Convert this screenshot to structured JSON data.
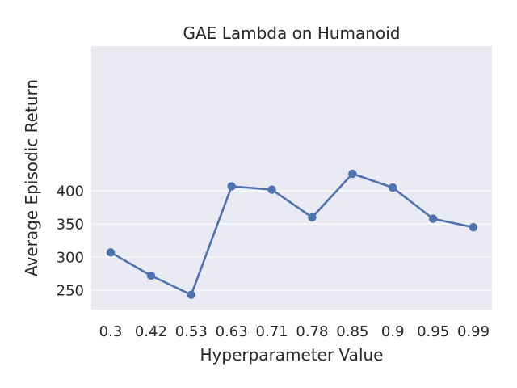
{
  "chart_data": {
    "type": "line",
    "title": "GAE Lambda on Humanoid",
    "xlabel": "Hyperparameter Value",
    "ylabel": "Average Episodic Return",
    "categories": [
      "0.3",
      "0.42",
      "0.53",
      "0.63",
      "0.71",
      "0.78",
      "0.85",
      "0.9",
      "0.95",
      "0.99"
    ],
    "series": [
      {
        "values": [
          307,
          272,
          243,
          407,
          402,
          360,
          426,
          405,
          358,
          345
        ]
      }
    ],
    "yticks": [
      250,
      300,
      350,
      400
    ],
    "ylim": [
      234,
      435
    ],
    "grid": true,
    "colors": {
      "line": "#4c72b0",
      "background": "#eaeaf2",
      "grid": "#ffffff"
    }
  }
}
